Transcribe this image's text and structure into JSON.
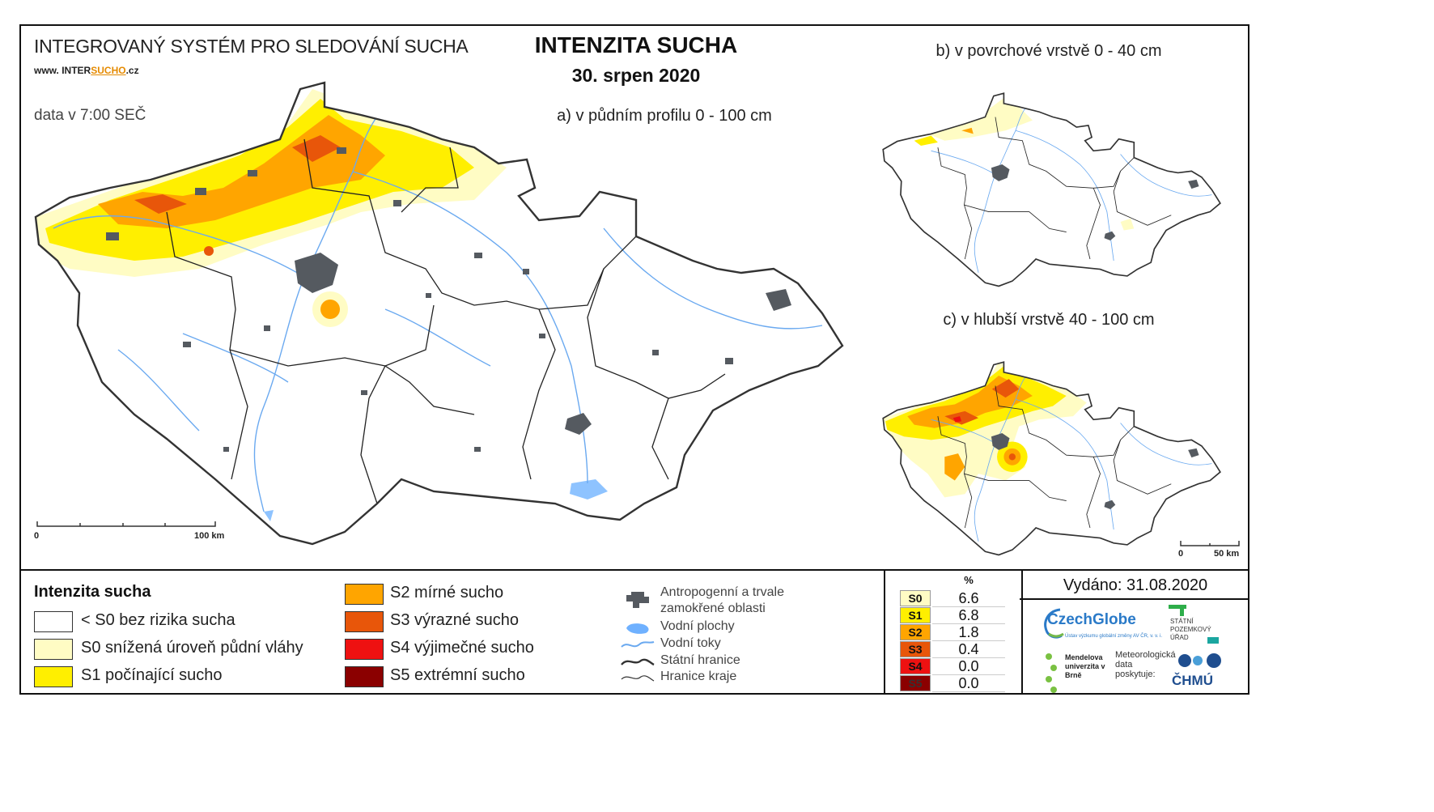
{
  "header": {
    "system_title": "INTEGROVANÝ SYSTÉM PRO SLEDOVÁNÍ SUCHA",
    "website_prefix": "www. INTER",
    "website_highlight": "SUCHO",
    "website_suffix": ".cz",
    "data_time": "data v 7:00 SEČ",
    "main_title": "INTENZITA SUCHA",
    "date": "30. srpen 2020"
  },
  "maps": {
    "a_label": "a) v půdním profilu 0 - 100 cm",
    "b_label": "b) v povrchové vrstvě 0 - 40 cm",
    "c_label": "c) v hlubší vrstvě 40 - 100 cm",
    "scale_a": {
      "start": "0",
      "end": "100 km"
    },
    "scale_c": {
      "start": "0",
      "end": "50 km"
    }
  },
  "legend": {
    "title": "Intenzita sucha",
    "classes": [
      {
        "label": "< S0 bez rizika sucha",
        "color": "#ffffff"
      },
      {
        "label": "S0 snížená úroveň půdní vláhy",
        "color": "#fffcc4"
      },
      {
        "label": "S1 počínající sucho",
        "color": "#ffef00"
      },
      {
        "label": "S2 mírné sucho",
        "color": "#ffa500"
      },
      {
        "label": "S3 výrazné sucho",
        "color": "#e8560a"
      },
      {
        "label": "S4 výjimečné sucho",
        "color": "#ee1111"
      },
      {
        "label": "S5 extrémní sucho",
        "color": "#8b0000"
      }
    ]
  },
  "symbols": {
    "urban_line1": "Antropogenní a trvale",
    "urban_line2": "zamokřené oblasti",
    "water_bodies": "Vodní plochy",
    "rivers": "Vodní toky",
    "state_border": "Státní hranice",
    "region_border": "Hranice kraje"
  },
  "stats": {
    "header": "%",
    "rows": [
      {
        "code": "S0",
        "value": "6.6",
        "color": "#fffcc4"
      },
      {
        "code": "S1",
        "value": "6.8",
        "color": "#ffef00"
      },
      {
        "code": "S2",
        "value": "1.8",
        "color": "#ffa500"
      },
      {
        "code": "S3",
        "value": "0.4",
        "color": "#e8560a"
      },
      {
        "code": "S4",
        "value": "0.0",
        "color": "#ee1111"
      },
      {
        "code": "S5",
        "value": "0.0",
        "color": "#8b0000"
      }
    ]
  },
  "issued": "Vydáno: 31.08.2020",
  "logos": {
    "czechglobe": "CzechGlobe",
    "czechglobe_sub": "Ústav výzkumu globální změny AV ČR, v. v. i.",
    "spu": "STÁTNÍ POZEMKOVÝ ÚŘAD",
    "mendel": "Mendelova univerzita v Brně",
    "meteo": "Meteorologická data poskytuje:",
    "chmu": "ČHMÚ"
  }
}
